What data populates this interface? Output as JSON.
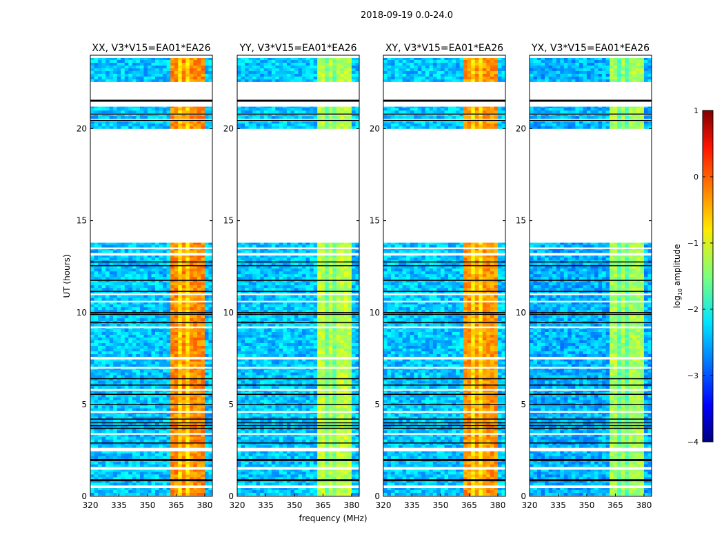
{
  "chart_data": {
    "type": "heatmap",
    "suptitle": "2018-09-19 0.0-24.0",
    "xlabel": "frequency (MHz)",
    "ylabel": "UT (hours)",
    "xlim": [
      320,
      384
    ],
    "ylim": [
      0,
      24
    ],
    "xticks": [
      "320",
      "335",
      "350",
      "365",
      "380"
    ],
    "yticks": [
      "0",
      "5",
      "10",
      "15",
      "20"
    ],
    "colorbar": {
      "label": "log10 amplitude",
      "label_main": "log",
      "label_sub": "10",
      "label_rest": " amplitude",
      "range": [
        -4,
        1
      ],
      "ticks": [
        "−4",
        "−3",
        "−2",
        "−1",
        "0",
        "1"
      ],
      "colormap": "jet"
    },
    "panels": [
      {
        "title": "XX, V3*V15=EA01*EA26",
        "background_level": -2.4,
        "band_level": -0.3
      },
      {
        "title": "YY, V3*V15=EA01*EA26",
        "background_level": -2.4,
        "band_level": -1.2
      },
      {
        "title": "XY, V3*V15=EA01*EA26",
        "background_level": -2.4,
        "band_level": -0.35
      },
      {
        "title": "YX, V3*V15=EA01*EA26",
        "background_level": -2.5,
        "band_level": -1.3
      }
    ],
    "band_MHz": [
      362,
      380
    ],
    "band_gaps_MHz": [
      367,
      371.5,
      376
    ],
    "data_segments_hours": [
      [
        0.05,
        0.45
      ],
      [
        0.6,
        1.45
      ],
      [
        1.6,
        2.45
      ],
      [
        2.65,
        3.35
      ],
      [
        3.45,
        4.55
      ],
      [
        4.65,
        5.75
      ],
      [
        5.85,
        6.95
      ],
      [
        7.05,
        7.45
      ],
      [
        7.6,
        9.15
      ],
      [
        9.25,
        10.55
      ],
      [
        10.65,
        10.95
      ],
      [
        11.05,
        13.1
      ],
      [
        13.25,
        13.45
      ],
      [
        13.55,
        13.8
      ],
      [
        20.0,
        20.4
      ],
      [
        20.55,
        20.75
      ],
      [
        20.85,
        21.2
      ],
      [
        22.55,
        23.85
      ]
    ],
    "flagged_black_hours": [
      0.85,
      0.9,
      1.95,
      2.0,
      2.9,
      3.7,
      3.85,
      4.0,
      4.2,
      5.0,
      5.55,
      6.05,
      6.4,
      9.45,
      9.9,
      10.0,
      11.15,
      11.75,
      12.55,
      12.75,
      21.5,
      21.55,
      20.45,
      20.8
    ]
  }
}
